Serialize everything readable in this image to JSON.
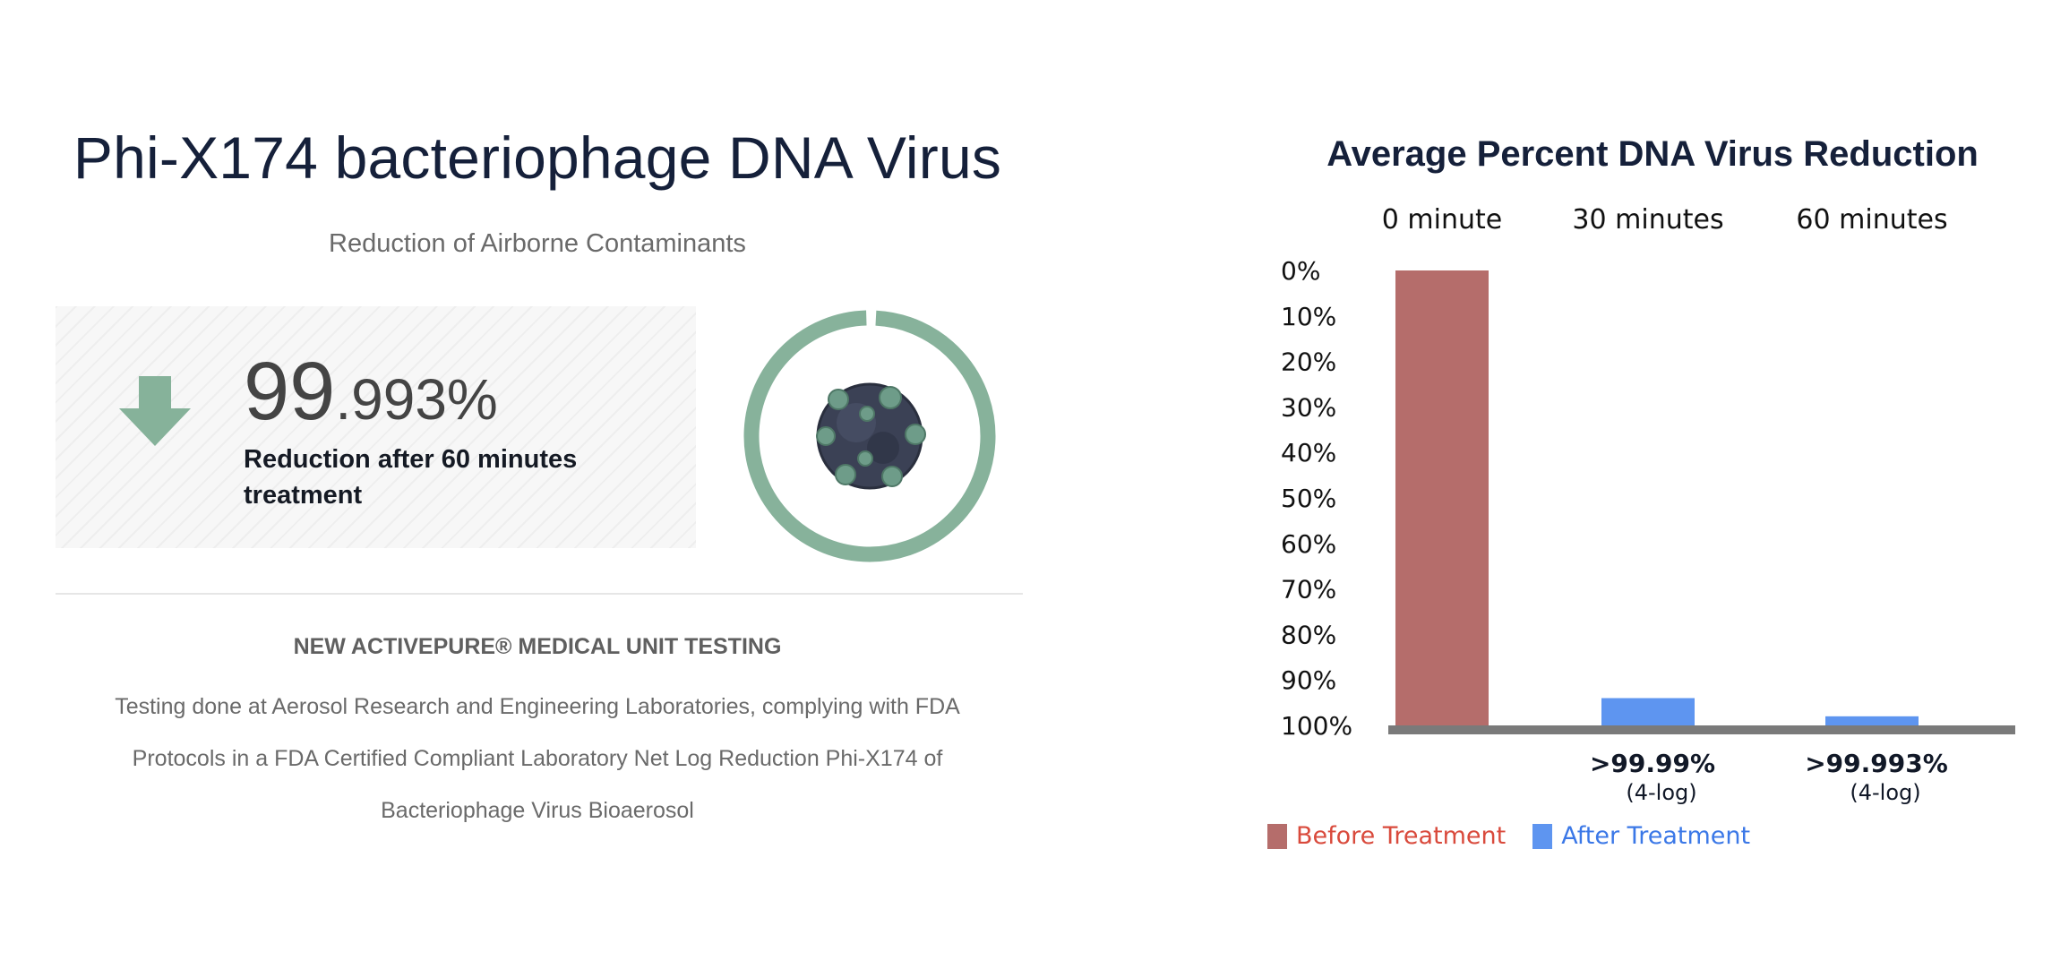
{
  "left_panel": {
    "title": "Phi-X174 bacteriophage DNA Virus",
    "subtitle": "Reduction of Airborne Contaminants",
    "stat": {
      "value_whole": "99",
      "value_fraction": ".993%",
      "caption": "Reduction after 60 minutes treatment"
    },
    "ring": {
      "color": "#87b29b"
    },
    "testing": {
      "heading": "NEW ACTIVEPURE® MEDICAL UNIT TESTING",
      "body": "Testing done at Aerosol Research and Engineering Laboratories, complying with FDA Protocols in a FDA Certified Compliant Laboratory Net Log Reduction Phi-X174 of Bacteriophage Virus Bioaerosol"
    },
    "icons": [
      "down-arrow-icon",
      "virus-icon"
    ],
    "colors": {
      "accent_green": "#87b29b",
      "arrow_green": "#86b29a"
    }
  },
  "chart_data": {
    "type": "bar",
    "title": "Average Percent DNA Virus Reduction",
    "categories": [
      "0 minute",
      "30 minutes",
      "60 minutes"
    ],
    "y_ticks": [
      "0%",
      "10%",
      "20%",
      "30%",
      "40%",
      "50%",
      "60%",
      "70%",
      "80%",
      "90%",
      "100%"
    ],
    "ylim": [
      0,
      100
    ],
    "y_inverted": true,
    "series": [
      {
        "name": "Before Treatment",
        "color": "#b56d6b",
        "values": [
          100,
          null,
          null
        ]
      },
      {
        "name": "After Treatment",
        "color": "#5e95f0",
        "values": [
          null,
          6,
          2
        ]
      }
    ],
    "data_labels": [
      {
        "category": "30 minutes",
        "main": ">99.99%",
        "sub": "(4-log)"
      },
      {
        "category": "60 minutes",
        "main": ">99.993%",
        "sub": "(4-log)"
      }
    ],
    "legend": {
      "position": "bottom-left",
      "items": [
        {
          "label": "Before Treatment",
          "swatch": "#b56d6b",
          "text_color": "#d94a3c"
        },
        {
          "label": "After Treatment",
          "swatch": "#5e95f0",
          "text_color": "#3b78e7"
        }
      ]
    },
    "baseline_color": "#7a7a7a",
    "grid": false
  }
}
